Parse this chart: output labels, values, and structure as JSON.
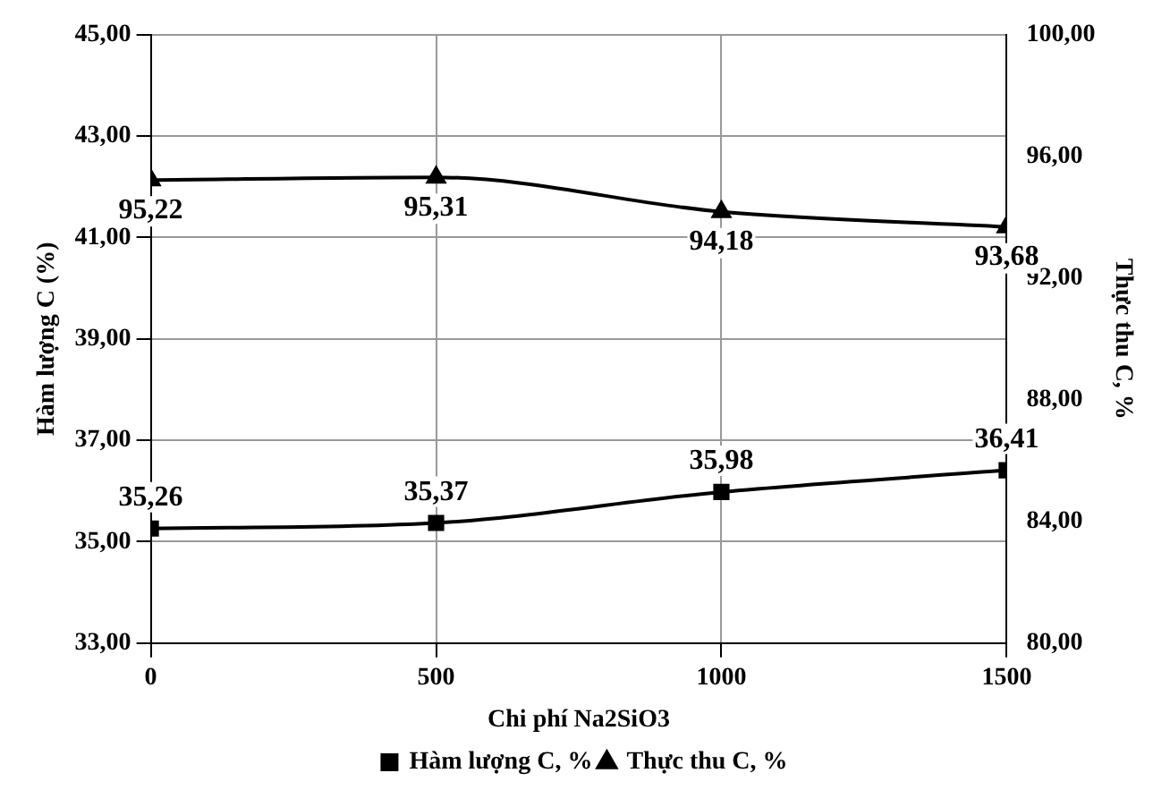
{
  "chart_data": {
    "type": "line",
    "xlabel": "Chi phí Na2SiO3",
    "ylabel": "Hàm lượng C (%)",
    "y2label": "Thực thu C, %",
    "x": [
      0,
      500,
      1000,
      1500
    ],
    "series": [
      {
        "name": "Hàm lượng C, %",
        "color": "#000000",
        "marker": "square",
        "values": [
          35.26,
          35.37,
          35.98,
          36.41
        ],
        "value_labels": [
          "35,26",
          "35,37",
          "35,98",
          "36,41"
        ]
      },
      {
        "name": "Thực thu C, %",
        "color": "#000000",
        "marker": "triangle",
        "axis": "y2",
        "values": [
          95.22,
          95.31,
          94.18,
          93.68
        ],
        "value_labels": [
          "95,22",
          "95,31",
          "94,18",
          "93,68"
        ]
      }
    ],
    "xlim": [
      0,
      1500
    ],
    "xticks": [
      0,
      500,
      1000,
      1500
    ],
    "ylim": [
      33,
      45
    ],
    "yticks": [
      {
        "value": 33,
        "label": "33,00"
      },
      {
        "value": 35,
        "label": "35,00"
      },
      {
        "value": 37,
        "label": "37,00"
      },
      {
        "value": 39,
        "label": "39,00"
      },
      {
        "value": 41,
        "label": "41,00"
      },
      {
        "value": 43,
        "label": "43,00"
      },
      {
        "value": 45,
        "label": "45,00"
      }
    ],
    "y2lim": [
      80,
      100
    ],
    "y2ticks": [
      {
        "value": 80,
        "label": "80,00"
      },
      {
        "value": 84,
        "label": "84,00"
      },
      {
        "value": 88,
        "label": "88,00"
      },
      {
        "value": 92,
        "label": "92,00"
      },
      {
        "value": 96,
        "label": "96,00"
      },
      {
        "value": 100,
        "label": "100,00"
      }
    ],
    "grid": true,
    "legend": "bottom",
    "line_style": "solid"
  }
}
